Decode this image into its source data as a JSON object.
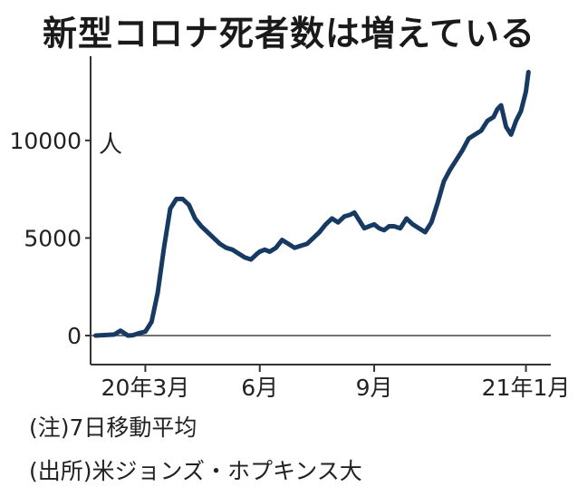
{
  "chart_data": {
    "type": "line",
    "title": "新型コロナ死者数は増えている",
    "unit_label": "人",
    "yticks": [
      0,
      5000,
      10000
    ],
    "ylim": [
      0,
      14500
    ],
    "xticks": [
      {
        "label": "20年3月",
        "day": 40
      },
      {
        "label": "6月",
        "day": 132
      },
      {
        "label": "9月",
        "day": 224
      },
      {
        "label": "21年1月",
        "day": 346
      }
    ],
    "xlim": [
      -4,
      366
    ],
    "grid": false,
    "series": [
      {
        "color": "#173a63",
        "x": [
          0,
          15,
          20,
          26,
          30,
          35,
          40,
          45,
          50,
          55,
          60,
          65,
          70,
          75,
          80,
          85,
          90,
          95,
          100,
          105,
          110,
          115,
          120,
          125,
          130,
          132,
          136,
          140,
          145,
          150,
          155,
          160,
          165,
          170,
          175,
          180,
          185,
          190,
          195,
          200,
          205,
          208,
          212,
          216,
          220,
          224,
          228,
          232,
          236,
          240,
          245,
          250,
          255,
          260,
          265,
          270,
          275,
          280,
          285,
          290,
          295,
          300,
          305,
          310,
          315,
          320,
          323,
          326,
          330,
          334,
          338,
          342,
          346,
          348
        ],
        "y": [
          0,
          50,
          250,
          0,
          20,
          120,
          200,
          700,
          2200,
          4500,
          6500,
          7000,
          7000,
          6700,
          6000,
          5600,
          5300,
          5000,
          4700,
          4500,
          4400,
          4200,
          4000,
          3900,
          4200,
          4300,
          4400,
          4300,
          4500,
          4900,
          4700,
          4500,
          4600,
          4700,
          5000,
          5300,
          5700,
          6000,
          5800,
          6100,
          6200,
          6300,
          5900,
          5500,
          5600,
          5700,
          5500,
          5400,
          5600,
          5600,
          5500,
          6000,
          5700,
          5500,
          5300,
          5800,
          6800,
          7900,
          8500,
          9000,
          9500,
          10100,
          10300,
          10500,
          11000,
          11200,
          11600,
          11800,
          10700,
          10300,
          11000,
          11500,
          12500,
          13500
        ]
      }
    ]
  },
  "notes": {
    "note1": "(注)7日移動平均",
    "note2": "(出所)米ジョンズ・ホプキンス大"
  }
}
